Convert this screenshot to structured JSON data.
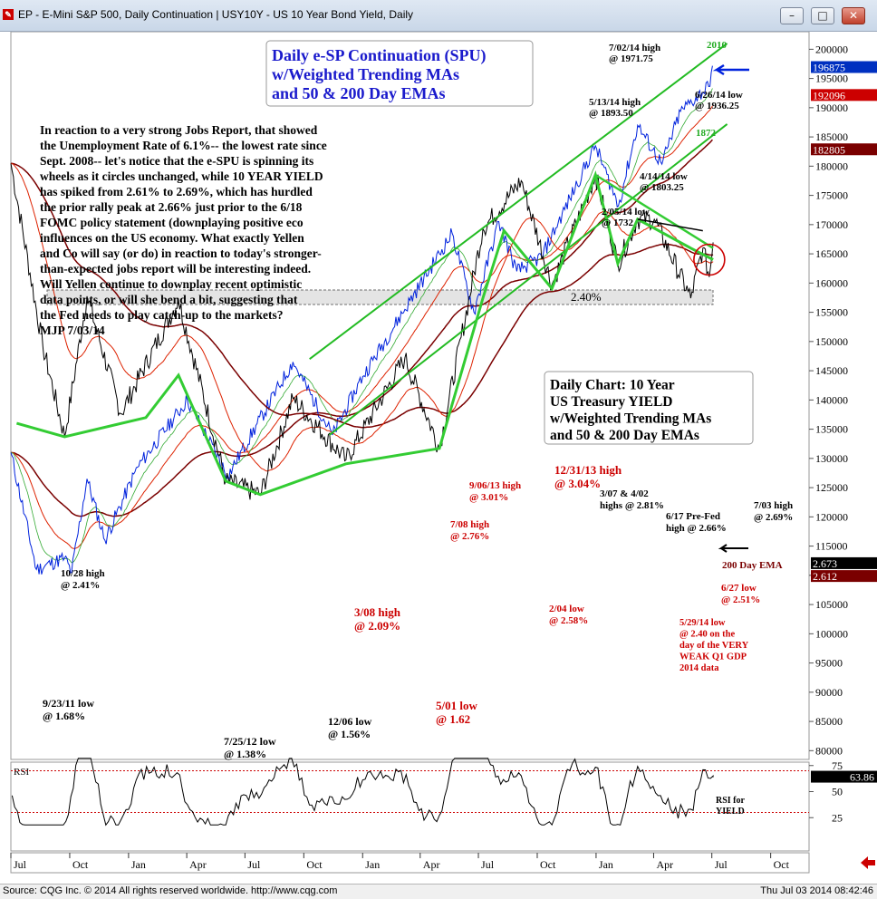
{
  "window": {
    "app_icon": "cqg-app-icon",
    "title": "EP - E-Mini S&P 500, Daily Continuation   |   USY10Y - US 10 Year Bond Yield, Daily",
    "minimize_label": "–",
    "maximize_label": "□",
    "close_label": "✕"
  },
  "footer": {
    "left": "Source: CQG Inc. © 2014 All rights reserved worldwide. http://www.cqg.com",
    "right": "Thu Jul 03 2014 08:42:46"
  },
  "chart_data": {
    "type": "line",
    "x_axis": {
      "tick_labels": [
        "Jul",
        "Oct",
        "Jan",
        "Apr",
        "Jul",
        "Oct",
        "Jan",
        "Apr",
        "Jul",
        "Oct",
        "Jan",
        "Apr",
        "Jul",
        "Oct"
      ],
      "range": [
        "2011-07-01",
        "2014-11-30"
      ]
    },
    "price_axis": {
      "series": "EP - E-Mini S&P 500, Daily Continuation",
      "ticks": [
        80000,
        85000,
        90000,
        95000,
        100000,
        105000,
        110000,
        115000,
        120000,
        125000,
        130000,
        135000,
        140000,
        145000,
        150000,
        155000,
        160000,
        165000,
        170000,
        175000,
        180000,
        185000,
        190000,
        195000,
        200000
      ],
      "range": [
        78500,
        203000
      ],
      "markers": [
        {
          "label": "196875",
          "value": 196875,
          "color": "#0030c0"
        },
        {
          "label": "192096",
          "value": 192096,
          "color": "#cc0000"
        },
        {
          "label": "182805",
          "value": 182805,
          "color": "#7a0000"
        },
        {
          "label": "2.673",
          "value": 112000,
          "color": "#000000"
        },
        {
          "label": "2.612",
          "value": 109800,
          "color": "#7a0000"
        }
      ]
    },
    "spx_series": [
      {
        "date": "2011-07-01",
        "value": 131000
      },
      {
        "date": "2011-08-10",
        "value": 111000
      },
      {
        "date": "2011-09-23",
        "value": 113000
      },
      {
        "date": "2011-10-04",
        "value": 110500
      },
      {
        "date": "2011-10-28",
        "value": 126500
      },
      {
        "date": "2011-11-25",
        "value": 116000
      },
      {
        "date": "2012-01-15",
        "value": 128500
      },
      {
        "date": "2012-04-02",
        "value": 140000
      },
      {
        "date": "2012-06-04",
        "value": 127000
      },
      {
        "date": "2012-09-14",
        "value": 146500
      },
      {
        "date": "2012-11-15",
        "value": 134000
      },
      {
        "date": "2013-01-01",
        "value": 144000
      },
      {
        "date": "2013-05-21",
        "value": 168500
      },
      {
        "date": "2013-06-24",
        "value": 155000
      },
      {
        "date": "2013-08-02",
        "value": 170500
      },
      {
        "date": "2013-08-30",
        "value": 162000
      },
      {
        "date": "2013-10-08",
        "value": 164500
      },
      {
        "date": "2013-12-31",
        "value": 183500
      },
      {
        "date": "2014-02-05",
        "value": 173200
      },
      {
        "date": "2014-03-07",
        "value": 187000
      },
      {
        "date": "2014-04-14",
        "value": 180325
      },
      {
        "date": "2014-05-13",
        "value": 189350
      },
      {
        "date": "2014-06-26",
        "value": 193625
      },
      {
        "date": "2014-07-02",
        "value": 197175
      }
    ],
    "yield_series": [
      {
        "date": "2011-07-01",
        "value": 3.1
      },
      {
        "date": "2011-08-20",
        "value": 2.15
      },
      {
        "date": "2011-09-23",
        "value": 1.68
      },
      {
        "date": "2011-10-28",
        "value": 2.41
      },
      {
        "date": "2011-12-20",
        "value": 1.8
      },
      {
        "date": "2012-03-19",
        "value": 2.39
      },
      {
        "date": "2012-06-01",
        "value": 1.45
      },
      {
        "date": "2012-07-25",
        "value": 1.38
      },
      {
        "date": "2012-09-14",
        "value": 1.88
      },
      {
        "date": "2012-12-06",
        "value": 1.56
      },
      {
        "date": "2013-03-08",
        "value": 2.09
      },
      {
        "date": "2013-05-01",
        "value": 1.62
      },
      {
        "date": "2013-07-08",
        "value": 2.76
      },
      {
        "date": "2013-09-06",
        "value": 3.01
      },
      {
        "date": "2013-10-24",
        "value": 2.47
      },
      {
        "date": "2013-12-31",
        "value": 3.04
      },
      {
        "date": "2014-02-04",
        "value": 2.58
      },
      {
        "date": "2014-03-07",
        "value": 2.81
      },
      {
        "date": "2014-04-02",
        "value": 2.81
      },
      {
        "date": "2014-05-29",
        "value": 2.4
      },
      {
        "date": "2014-06-17",
        "value": 2.66
      },
      {
        "date": "2014-06-27",
        "value": 2.51
      },
      {
        "date": "2014-07-03",
        "value": 2.69
      }
    ],
    "rsi_panel": {
      "label": "RSI",
      "ticks": [
        25,
        50,
        75
      ],
      "reference_lines": [
        70,
        30
      ],
      "last_value_label": "63.86",
      "last_value": 63.86,
      "series_label": "RSI for YIELD"
    },
    "annotations": {
      "title_box": "Daily e-SP Continuation (SPU) w/Weighted Trending MAs and 50 & 200 Day EMAs",
      "yield_box": "Daily Chart: 10 Year US Treasury YIELD w/Weighted Trending MAs and 50 & 200 Day EMAs",
      "commentary": [
        "In reaction to a very strong Jobs Report, that showed",
        "the Unemployment Rate of 6.1%-- the lowest rate since",
        "Sept. 2008-- let's notice that the e-SPU is spinning its",
        "wheels as it circles unchanged, while 10 YEAR YIELD",
        "has spiked from 2.61% to 2.69%, which has hurdled",
        "the prior rally peak at 2.66% just prior to the 6/18",
        "FOMC policy statement (downplaying positive eco",
        "influences on the US economy. What exactly Yellen",
        "and Co will say (or do) in reaction to today's stronger-",
        "than-expected jobs report will be interesting indeed.",
        "Will Yellen continue to downplay recent optimistic",
        "data points, or will she bend a bit, suggesting that",
        "the Fed needs to play catch-up to the markets?",
        "MJP  7/03/14"
      ],
      "spx_labels": [
        {
          "lines": [
            "7/02/14 high",
            "@ 1971.75"
          ],
          "color": "#000000"
        },
        {
          "lines": [
            "5/13/14 high",
            "@ 1893.50"
          ],
          "color": "#000000"
        },
        {
          "lines": [
            "6/26/14 low",
            "@ 1936.25"
          ],
          "color": "#000000"
        },
        {
          "lines": [
            "4/14/14 low",
            "@ 1803.25"
          ],
          "color": "#000000"
        },
        {
          "lines": [
            "2/05/14 low",
            "@ 1732"
          ],
          "color": "#000000"
        },
        {
          "lines": [
            "2010"
          ],
          "color": "#22aa22"
        },
        {
          "lines": [
            "1872"
          ],
          "color": "#22aa22"
        }
      ],
      "yield_labels": [
        {
          "lines": [
            "10/28 high",
            "@ 2.41%"
          ],
          "color": "#000000"
        },
        {
          "lines": [
            "9/23/11 low",
            "@ 1.68%"
          ],
          "color": "#000000"
        },
        {
          "lines": [
            "7/25/12 low",
            "@ 1.38%"
          ],
          "color": "#000000"
        },
        {
          "lines": [
            "12/06 low",
            "@ 1.56%"
          ],
          "color": "#000000"
        },
        {
          "lines": [
            "3/08 high",
            "@ 2.09%"
          ],
          "color": "#cc0000"
        },
        {
          "lines": [
            "5/01 low",
            "@ 1.62"
          ],
          "color": "#cc0000"
        },
        {
          "lines": [
            "7/08 high",
            "@ 2.76%"
          ],
          "color": "#cc0000"
        },
        {
          "lines": [
            "9/06/13 high",
            "@ 3.01%"
          ],
          "color": "#cc0000"
        },
        {
          "lines": [
            "12/31/13 high",
            "@ 3.04%"
          ],
          "color": "#cc0000"
        },
        {
          "lines": [
            "2/04 low",
            "@ 2.58%"
          ],
          "color": "#cc0000"
        },
        {
          "lines": [
            "3/07 & 4/02",
            "highs @ 2.81%"
          ],
          "color": "#000000"
        },
        {
          "lines": [
            "6/17 Pre-Fed",
            "high @ 2.66%"
          ],
          "color": "#000000"
        },
        {
          "lines": [
            "7/03 high",
            "@ 2.69%"
          ],
          "color": "#000000"
        },
        {
          "lines": [
            "200 Day EMA"
          ],
          "color": "#7a0000"
        },
        {
          "lines": [
            "6/27 low",
            "@ 2.51%"
          ],
          "color": "#cc0000"
        },
        {
          "lines": [
            "5/29/14 low",
            "@ 2.40 on the",
            "day of the VERY",
            "WEAK Q1 GDP",
            "2014 data"
          ],
          "color": "#cc0000"
        }
      ],
      "band_label": "2.40%"
    }
  }
}
